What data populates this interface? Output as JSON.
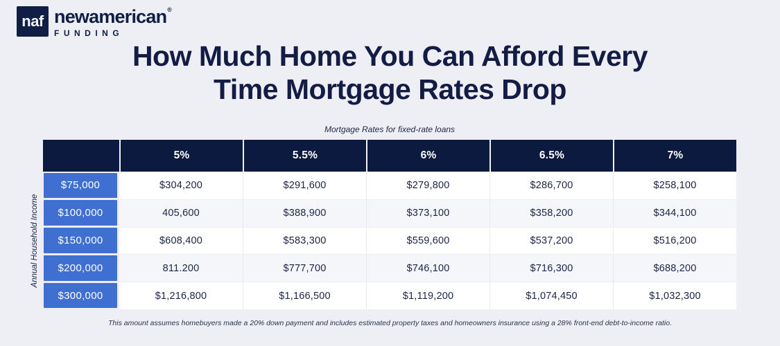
{
  "brand": {
    "monogram": "naf",
    "name": "newamerican",
    "registered": "®",
    "subname": "FUNDING"
  },
  "title": {
    "line1": "How Much Home You Can Afford Every",
    "line2": "Time Mortgage Rates Drop"
  },
  "chart_data": {
    "type": "table",
    "title": "How Much Home You Can Afford Every Time Mortgage Rates Drop",
    "subtitle": "Mortgage Rates for fixed-rate loans",
    "row_axis_label": "Annual Household Income",
    "columns": [
      "5%",
      "5.5%",
      "6%",
      "6.5%",
      "7%"
    ],
    "rows": [
      {
        "income": "$75,000",
        "values": [
          "$304,200",
          "$291,600",
          "$279,800",
          "$286,700",
          "$258,100"
        ]
      },
      {
        "income": "$100,000",
        "values": [
          "405,600",
          "$388,900",
          "$373,100",
          "$358,200",
          "$344,100"
        ]
      },
      {
        "income": "$150,000",
        "values": [
          "$608,400",
          "$583,300",
          "$559,600",
          "$537,200",
          "$516,200"
        ]
      },
      {
        "income": "$200,000",
        "values": [
          "811.200",
          "$777,700",
          "$746,100",
          "$716,300",
          "$688,200"
        ]
      },
      {
        "income": "$300,000",
        "values": [
          "$1,216,800",
          "$1,166,500",
          "$1,119,200",
          "$1,074,450",
          "$1,032,300"
        ]
      }
    ],
    "footnote": "This amount assumes homebuyers made a 20% down payment and includes estimated property taxes and homeowners insurance using a 28% front-end debt-to-income ratio."
  },
  "colors": {
    "header_navy": "#0d1a3f",
    "accent_blue": "#3f6fd1",
    "background": "#edeff4",
    "row_alt": "#f5f6f9",
    "text_navy": "#1c2347"
  }
}
